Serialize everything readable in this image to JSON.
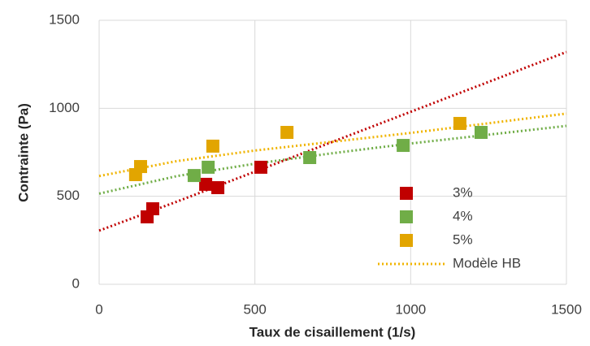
{
  "chart_data": {
    "type": "scatter",
    "xlabel": "Taux de cisaillement (1/s)",
    "ylabel": "Contrainte (Pa)",
    "xlim": [
      0,
      1500
    ],
    "ylim": [
      0,
      1500
    ],
    "xticks": [
      0,
      500,
      1000,
      1500
    ],
    "yticks": [
      0,
      500,
      1000,
      1500
    ],
    "grid": true,
    "legend": "lower right",
    "series": [
      {
        "name": "3%",
        "color": "#c00000",
        "x": [
          154,
          172,
          342,
          381,
          519
        ],
        "values": [
          383,
          429,
          568,
          549,
          665
        ]
      },
      {
        "name": "4%",
        "color": "#70ad47",
        "x": [
          305,
          350,
          676,
          976,
          1226
        ],
        "values": [
          618,
          665,
          720,
          789,
          863
        ]
      },
      {
        "name": "5%",
        "color": "#e2a500",
        "x": [
          117,
          133,
          365,
          603,
          1158
        ],
        "values": [
          623,
          669,
          785,
          863,
          914
        ]
      }
    ],
    "trend_name": "Modèle HB",
    "trend_legend_color": "#f0b400",
    "trendlines": [
      {
        "color": "#c00000",
        "x": [
          0,
          250,
          500,
          750,
          1000,
          1250,
          1500
        ],
        "values": [
          305,
          470,
          640,
          810,
          980,
          1150,
          1320
        ]
      },
      {
        "color": "#70ad47",
        "x": [
          0,
          250,
          500,
          750,
          1000,
          1250,
          1500
        ],
        "values": [
          515,
          615,
          685,
          745,
          800,
          850,
          900
        ]
      },
      {
        "color": "#f0b400",
        "x": [
          0,
          250,
          500,
          750,
          1000,
          1250,
          1500
        ],
        "values": [
          615,
          700,
          760,
          810,
          860,
          915,
          970
        ]
      }
    ]
  }
}
